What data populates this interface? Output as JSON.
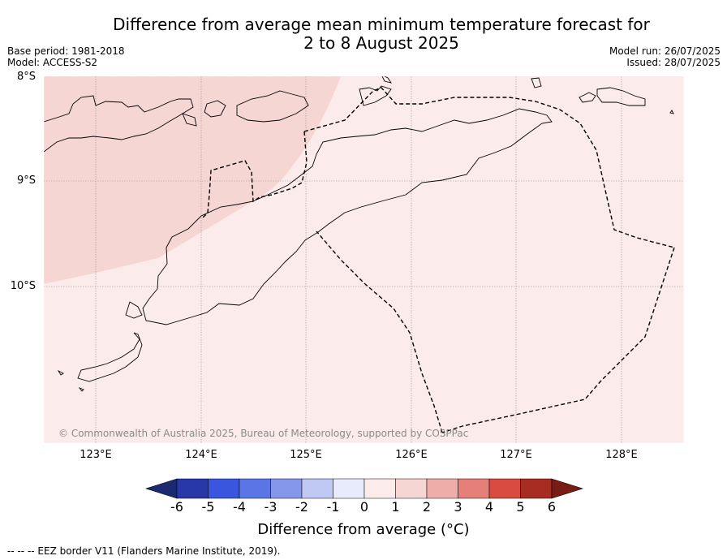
{
  "title_line1": "Difference from average mean minimum temperature forecast for",
  "title_line2": "2 to 8 August 2025",
  "base_period": "Base period: 1981-2018",
  "model": "Model: ACCESS-S2",
  "model_run": "Model run: 26/07/2025",
  "issued": "Issued: 28/07/2025",
  "lat_labels": [
    "8°S",
    "9°S",
    "10°S"
  ],
  "lon_labels": [
    "123°E",
    "124°E",
    "125°E",
    "126°E",
    "127°E",
    "128°E"
  ],
  "copyright": "© Commonwealth of Australia 2025, Bureau of Meteorology, supported by COSPPac",
  "colorbar": {
    "ticks": [
      "-6",
      "-5",
      "-4",
      "-3",
      "-2",
      "-1",
      "0",
      "1",
      "2",
      "3",
      "4",
      "5",
      "6"
    ],
    "colors": [
      "#1b2a70",
      "#2838a8",
      "#3a55e0",
      "#5a75e6",
      "#8497ea",
      "#c0c9f4",
      "#e8ebfb",
      "#fbeceb",
      "#f6d6d3",
      "#eeada8",
      "#e57f77",
      "#d94b3f",
      "#a82c22",
      "#7a1c16"
    ],
    "label": "Difference from average (°C)"
  },
  "map_fill": {
    "zero_to_one": "#fbeceb",
    "one_to_two": "#f6d6d3"
  },
  "legend_note": "-- -- -- EEZ border V11 (Flanders Marine Institute, 2019)."
}
